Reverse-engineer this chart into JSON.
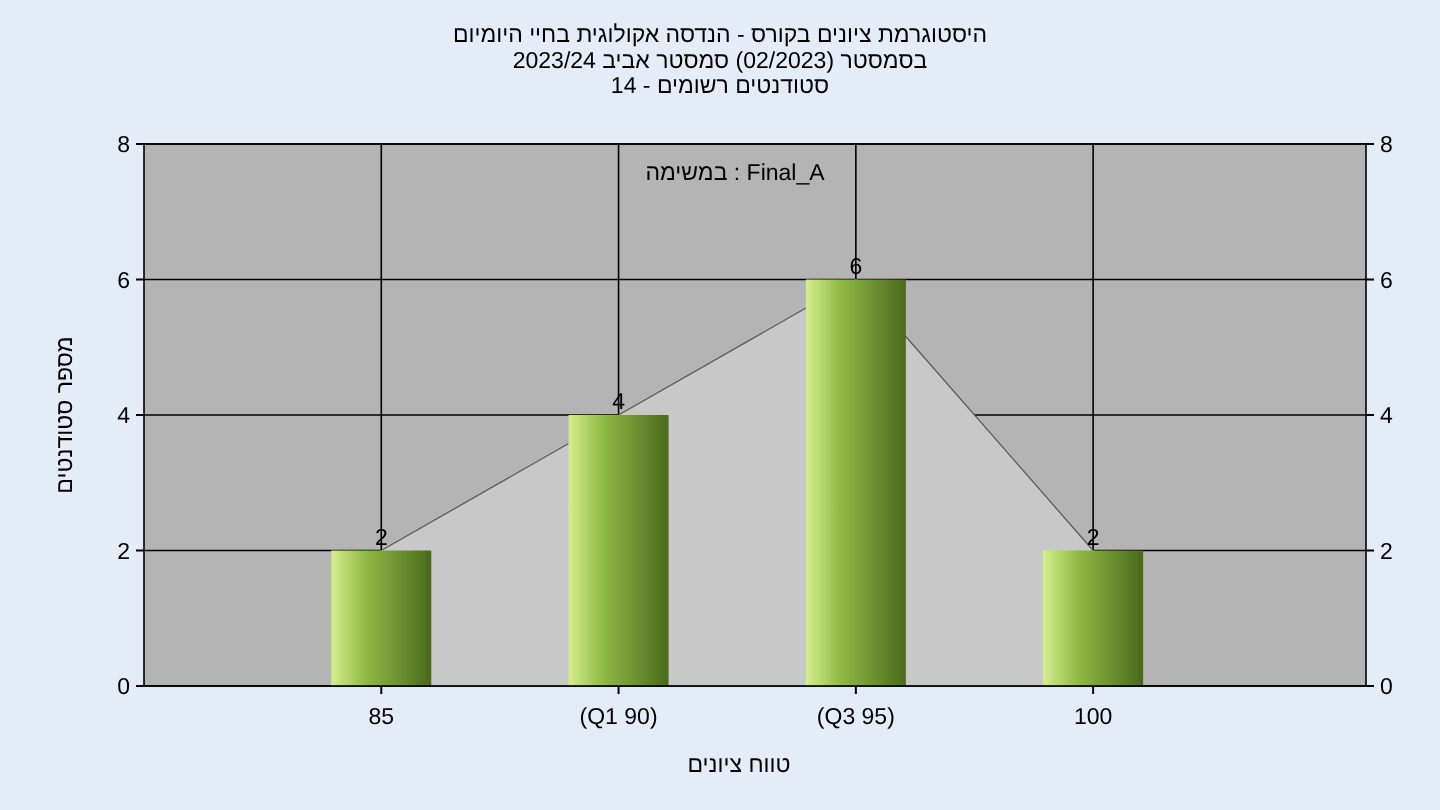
{
  "chart_data": {
    "type": "bar",
    "title": "היסטוגרמת ציונים בקורס - הנדסה אקולוגית בחיי היומיום",
    "subtitle": "בסמסטר  (02/2023)  סמסטר אביב 2023/24\nסטודנטים רשומים - 14",
    "xlabel": "טווח ציונים",
    "ylabel": "מספר סטודנטים",
    "annotations": [
      "במשימה : Final_A"
    ],
    "categories": [
      "85",
      "(Q1 90)",
      "(Q3 95)",
      "100"
    ],
    "series": [
      {
        "type": "area",
        "color": "#c8c8c8",
        "values": [
          2,
          4,
          6,
          2
        ]
      },
      {
        "color": "#8fb944",
        "values": [
          2,
          4,
          6,
          2
        ],
        "value_labels": [
          "2",
          "4",
          "6",
          "2"
        ]
      }
    ],
    "ylim": [
      0,
      8
    ],
    "yticks": [
      0,
      2,
      4,
      6,
      8
    ],
    "y2lim": [
      0,
      8
    ],
    "y2ticks": [
      0,
      2,
      4,
      6,
      8
    ],
    "grid": true
  }
}
